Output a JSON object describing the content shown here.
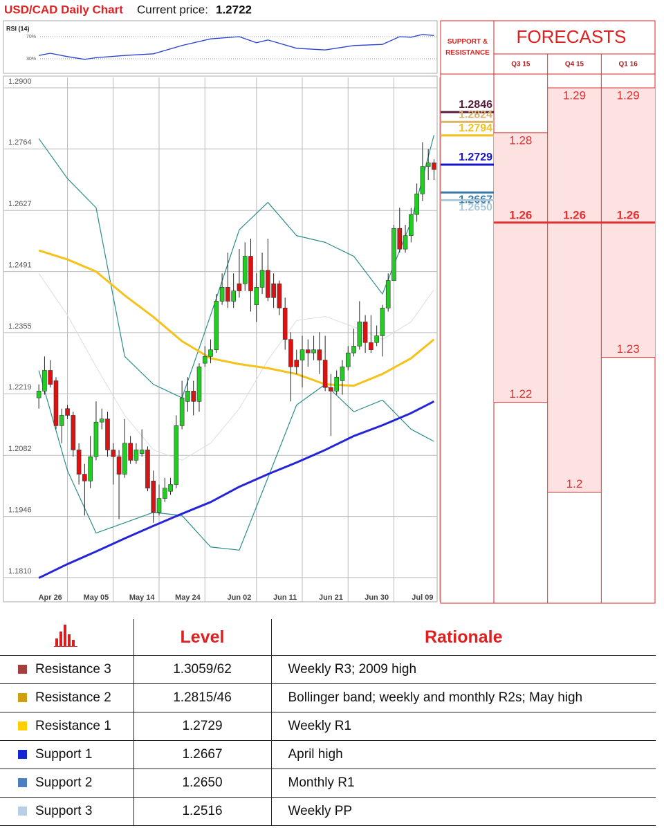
{
  "header": {
    "title": "USD/CAD Daily Chart",
    "price_label": "Current price:",
    "price": "1.2722"
  },
  "chart_data": [
    {
      "type": "candlestick",
      "ylim": [
        1.1756,
        1.2923
      ],
      "yticks": [
        {
          "value": 1.29,
          "label": "1.2900"
        },
        1.2764,
        1.2627,
        1.2491,
        1.2355,
        1.2219,
        1.2082,
        1.1946,
        {
          "value": 1.181,
          "label": "1.1810"
        }
      ],
      "grid": true,
      "categories": [
        null,
        null,
        "Apr 26",
        null,
        null,
        null,
        null,
        null,
        null,
        null,
        "May 05",
        null,
        null,
        null,
        null,
        null,
        null,
        null,
        "May 14",
        null,
        null,
        null,
        null,
        null,
        null,
        null,
        "May 24",
        null,
        null,
        null,
        null,
        null,
        null,
        null,
        null,
        "Jun 02",
        null,
        null,
        null,
        null,
        null,
        null,
        null,
        "Jun 11",
        null,
        null,
        null,
        null,
        null,
        null,
        null,
        "Jun 21",
        null,
        null,
        null,
        null,
        null,
        null,
        null,
        "Jun 30",
        null,
        null,
        null,
        null,
        null,
        null,
        null,
        "Jul 09",
        null,
        null
      ],
      "up_color": "#22cc22",
      "down_color": "#dd1111",
      "open": [
        1.221,
        1.2225,
        1.2271,
        1.2248,
        1.2148,
        1.2186,
        1.2171,
        1.2094,
        1.204,
        1.2025,
        1.2079,
        1.2156,
        1.2163,
        1.2094,
        1.2079,
        1.204,
        1.2109,
        1.2071,
        1.2086,
        1.2094,
        1.2025,
        1.1955,
        1.1986,
        1.2002,
        1.2017,
        1.2148,
        1.2202,
        1.2225,
        1.2202,
        1.2287,
        1.2302,
        1.2317,
        1.2425,
        1.2456,
        1.2425,
        1.2464,
        1.2464,
        1.2525,
        1.2417,
        1.2456,
        1.2494,
        1.2464,
        1.2464,
        1.241,
        1.234,
        1.2294,
        1.2294,
        1.2317,
        1.231,
        1.2317,
        1.2294,
        1.2233,
        1.2225,
        1.2248,
        1.2279,
        1.231,
        1.2325,
        1.2379,
        1.2333,
        1.2333,
        1.2348,
        1.241,
        1.2471,
        1.2587,
        1.2541,
        1.2571,
        1.2618,
        1.2664,
        1.2725,
        1.2733
      ],
      "high": [
        1.224,
        1.2302,
        1.2294,
        1.2256,
        1.2186,
        1.2194,
        1.2179,
        1.2109,
        1.2063,
        1.2125,
        1.2202,
        1.2186,
        1.2179,
        1.2109,
        1.2094,
        1.2163,
        1.2125,
        1.2109,
        1.214,
        1.2102,
        1.2048,
        1.2017,
        1.2032,
        1.2032,
        1.2171,
        1.2248,
        1.2256,
        1.2248,
        1.2287,
        1.2325,
        1.234,
        1.2441,
        1.2487,
        1.2533,
        1.2487,
        1.2541,
        1.2556,
        1.2564,
        1.2487,
        1.2533,
        1.2564,
        1.2487,
        1.2471,
        1.2433,
        1.2356,
        1.2317,
        1.2348,
        1.234,
        1.2348,
        1.2356,
        1.2348,
        1.2263,
        1.2271,
        1.2294,
        1.2325,
        1.2364,
        1.2425,
        1.2394,
        1.2394,
        1.2371,
        1.2417,
        1.2487,
        1.2595,
        1.2633,
        1.2595,
        1.2633,
        1.2687,
        1.2779,
        1.2764,
        1.2741
      ],
      "low": [
        1.2186,
        1.2217,
        1.2233,
        1.214,
        1.2109,
        1.2163,
        1.2079,
        1.2017,
        1.1948,
        1.2009,
        1.2071,
        1.214,
        1.2079,
        1.2017,
        1.194,
        1.2032,
        1.2063,
        1.2063,
        1.2079,
        1.2002,
        1.1932,
        1.1948,
        1.1978,
        1.1994,
        1.2009,
        1.214,
        1.2179,
        1.2171,
        1.2179,
        1.2279,
        1.2287,
        1.231,
        1.2417,
        1.241,
        1.241,
        1.2433,
        1.2448,
        1.2402,
        1.2379,
        1.2441,
        1.2425,
        1.241,
        1.2394,
        1.2317,
        1.2202,
        1.2263,
        1.2233,
        1.2279,
        1.2294,
        1.2263,
        1.2225,
        1.2125,
        1.2217,
        1.2217,
        1.2271,
        1.2302,
        1.2317,
        1.231,
        1.231,
        1.2325,
        1.2302,
        1.2402,
        1.2471,
        1.2533,
        1.2533,
        1.2556,
        1.2602,
        1.2648,
        1.2695,
        1.2695
      ],
      "close": [
        1.2225,
        1.2271,
        1.224,
        1.2148,
        1.2171,
        1.2171,
        1.2094,
        1.204,
        1.2025,
        1.2079,
        1.2156,
        1.2163,
        1.2094,
        1.2079,
        1.204,
        1.2109,
        1.2071,
        1.2094,
        1.2094,
        1.2009,
        1.1955,
        1.1986,
        1.2009,
        1.2017,
        1.2148,
        1.221,
        1.2225,
        1.2202,
        1.2279,
        1.2302,
        1.2317,
        1.2425,
        1.2456,
        1.2425,
        1.2448,
        1.2448,
        1.2525,
        1.2448,
        1.2456,
        1.2494,
        1.2433,
        1.2433,
        1.241,
        1.234,
        1.2279,
        1.2279,
        1.2317,
        1.231,
        1.2317,
        1.2294,
        1.2233,
        1.2225,
        1.2256,
        1.2279,
        1.231,
        1.2325,
        1.2379,
        1.2333,
        1.2317,
        1.2348,
        1.241,
        1.2471,
        1.2587,
        1.2541,
        1.2571,
        1.2618,
        1.2664,
        1.2725,
        1.2733,
        1.2718
      ],
      "series": [
        {
          "color": "#dddddd",
          "line_width": 1,
          "x": [
            0,
            5,
            10,
            15,
            20,
            25,
            30,
            35,
            40,
            45,
            50,
            55,
            60,
            65,
            69
          ],
          "values": [
            1.2487,
            1.2394,
            1.2279,
            1.2171,
            1.2094,
            1.2071,
            1.2109,
            1.2186,
            1.2294,
            1.2382,
            1.2391,
            1.2368,
            1.234,
            1.2379,
            1.2451
          ]
        },
        {
          "color": "#2a8c8c",
          "line_width": 1.2,
          "x": [
            0,
            5,
            10,
            15,
            20,
            25,
            30,
            35,
            40,
            45,
            50,
            55,
            60,
            65,
            69
          ],
          "values": [
            1.2787,
            1.2698,
            1.2633,
            1.2302,
            1.224,
            1.221,
            1.2394,
            1.2584,
            1.2645,
            1.2571,
            1.2556,
            1.2525,
            1.2441,
            1.2602,
            1.2795
          ]
        },
        {
          "color": "#2a8c8c",
          "line_width": 1.2,
          "x": [
            0,
            5,
            10,
            15,
            20,
            25,
            30,
            35,
            40,
            45,
            50,
            55,
            60,
            65,
            69
          ],
          "values": [
            1.2271,
            1.2048,
            1.1909,
            1.1932,
            1.1955,
            1.1948,
            1.1878,
            1.1871,
            1.2032,
            1.2194,
            1.224,
            1.2179,
            1.2205,
            1.214,
            1.2113
          ]
        },
        {
          "color": "#f6c21a",
          "line_width": 3,
          "x": [
            0,
            5,
            10,
            15,
            20,
            25,
            30,
            35,
            40,
            45,
            50,
            55,
            60,
            65,
            69
          ],
          "values": [
            1.2538,
            1.2518,
            1.2491,
            1.2438,
            1.239,
            1.2336,
            1.2298,
            1.2285,
            1.2276,
            1.2263,
            1.224,
            1.2237,
            1.2263,
            1.2298,
            1.234
          ]
        },
        {
          "color": "#2424d8",
          "line_width": 3,
          "x": [
            0,
            5,
            10,
            15,
            20,
            25,
            30,
            35,
            40,
            45,
            50,
            55,
            60,
            65,
            69
          ],
          "values": [
            1.1809,
            1.184,
            1.1868,
            1.1897,
            1.1925,
            1.1952,
            1.1978,
            1.2012,
            1.204,
            1.2066,
            1.2094,
            1.2125,
            1.2149,
            1.2176,
            1.2202
          ]
        }
      ],
      "levels_title": "SUPPORT & RESISTANCE",
      "levels": [
        {
          "value": 1.2846,
          "color": "#5a1a3a"
        },
        {
          "value": 1.2824,
          "color": "#d8b46e"
        },
        {
          "value": 1.2794,
          "color": "#f2c020"
        },
        {
          "value": 1.2729,
          "color": "#1414c8"
        },
        {
          "value": 1.2667,
          "color": "#3a7aa6"
        },
        {
          "value": 1.265,
          "label": "1.2650",
          "color": "#aac8dc"
        }
      ]
    },
    {
      "type": "line",
      "title": "RSI (14)",
      "ylim": [
        10,
        90
      ],
      "yticks": [
        {
          "value": 70,
          "label": "70%"
        },
        {
          "value": 30,
          "label": "30%"
        }
      ],
      "color": "#2a3fd0",
      "x": [
        0,
        2,
        5,
        8,
        10,
        15,
        20,
        25,
        30,
        35,
        38,
        40,
        45,
        50,
        55,
        60,
        63,
        65,
        67,
        69
      ],
      "values": [
        36,
        40,
        34,
        29,
        32,
        36,
        39,
        54,
        66,
        70,
        59,
        64,
        49,
        46,
        54,
        56,
        70,
        69,
        74,
        72
      ]
    },
    {
      "type": "range",
      "title": "FORECASTS",
      "categories": [
        "Q3 15",
        "Q4 15",
        "Q1 16"
      ],
      "ylim": [
        1.1756,
        1.2923
      ],
      "color": "#e03030",
      "fill": "#fde2e2",
      "high": [
        1.28,
        1.29,
        1.29
      ],
      "mid": [
        1.26,
        1.26,
        1.26
      ],
      "low": [
        1.22,
        1.2,
        1.23
      ]
    }
  ],
  "table": {
    "header": [
      "Level",
      "Rationale"
    ],
    "rows": [
      {
        "color": "#a3403f",
        "cells": [
          "Resistance 3",
          "1.3059/62",
          "Weekly R3; 2009 high"
        ]
      },
      {
        "color": "#d0a012",
        "cells": [
          "Resistance 2",
          "1.2815/46",
          "Bollinger band; weekly and monthly R2s; May high"
        ]
      },
      {
        "color": "#ffcf00",
        "cells": [
          "Resistance 1",
          "1.2729",
          "Weekly R1"
        ]
      },
      {
        "color": "#1426d4",
        "cells": [
          "Support 1",
          "1.2667",
          "April high"
        ]
      },
      {
        "color": "#4a80bf",
        "cells": [
          "Support 2",
          "1.2650",
          "Monthly R1"
        ]
      },
      {
        "color": "#b9cde4",
        "cells": [
          "Support 3",
          "1.2516",
          "Weekly PP"
        ]
      }
    ]
  }
}
